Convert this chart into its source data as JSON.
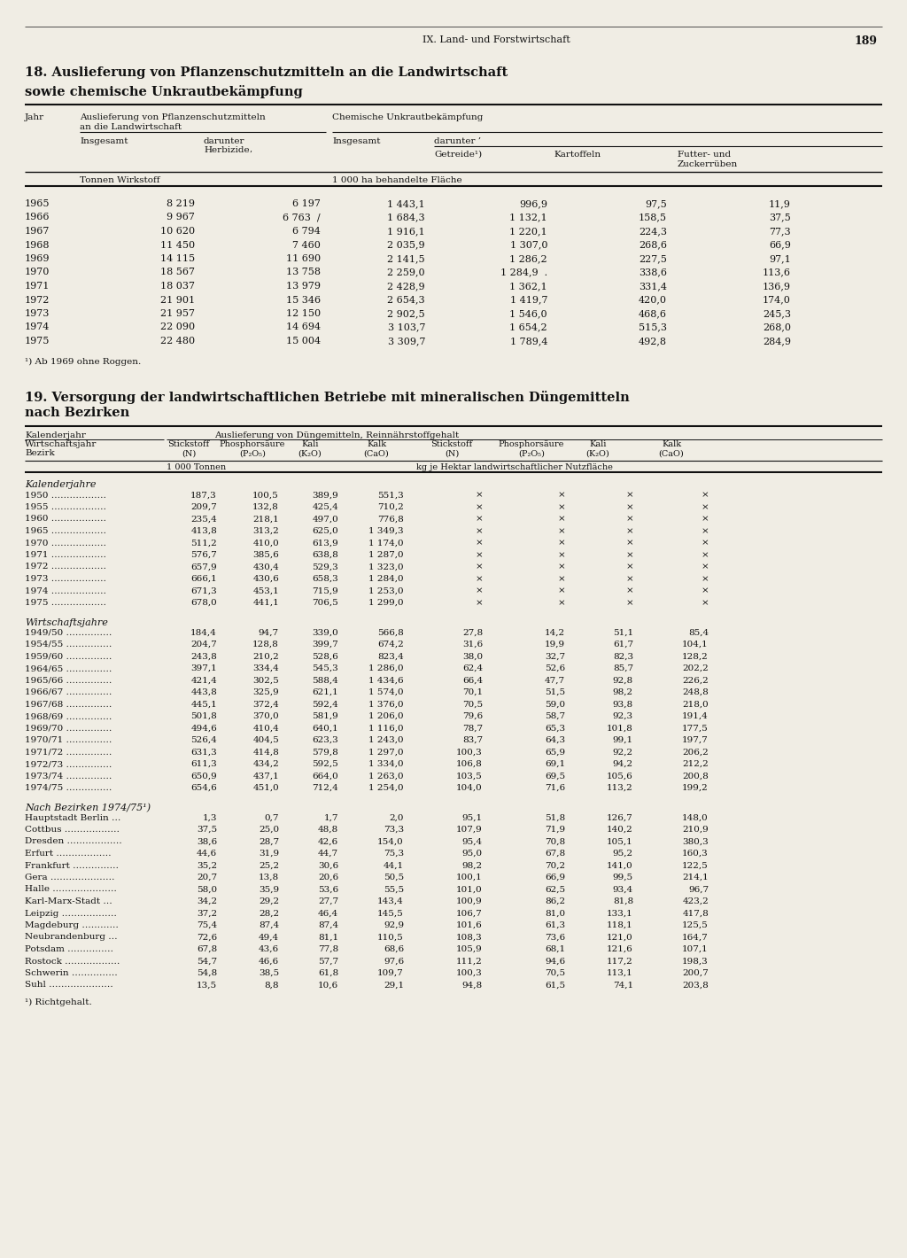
{
  "page_header": "IX. Land- und Forstwirtschaft",
  "page_number": "189",
  "bg_color": "#f0ede4",
  "t1_title1": "18. Auslieferung von Pflanzenschutzmitteln an die Landwirtschaft",
  "t1_title2": "sowie chemische Unkrautbekämpfung",
  "t1_data": [
    [
      "1965",
      "8 219",
      "6 197",
      "1 443,1",
      "996,9",
      "97,5",
      "11,9"
    ],
    [
      "1966",
      "9 967",
      "6 763  /",
      "1 684,3",
      "1 132,1",
      "158,5",
      "37,5"
    ],
    [
      "1967",
      "10 620",
      "6 794",
      "1 916,1",
      "1 220,1",
      "224,3",
      "77,3"
    ],
    [
      "1968",
      "11 450",
      "7 460",
      "2 035,9",
      "1 307,0",
      "268,6",
      "66,9"
    ],
    [
      "1969",
      "14 115",
      "11 690",
      "2 141,5",
      "1 286,2",
      "227,5",
      "97,1"
    ],
    [
      "1970",
      "18 567",
      "13 758",
      "2 259,0",
      "1 284,9  .",
      "338,6",
      "113,6"
    ],
    [
      "1971",
      "18 037",
      "13 979",
      "2 428,9",
      "1 362,1",
      "331,4",
      "136,9"
    ],
    [
      "1972",
      "21 901",
      "15 346",
      "2 654,3",
      "1 419,7",
      "420,0",
      "174,0"
    ],
    [
      "1973",
      "21 957",
      "12 150",
      "2 902,5",
      "1 546,0",
      "468,6",
      "245,3"
    ],
    [
      "1974",
      "22 090",
      "14 694",
      "3 103,7",
      "1 654,2",
      "515,3",
      "268,0"
    ],
    [
      "1975",
      "22 480",
      "15 004",
      "3 309,7",
      "1 789,4",
      "492,8",
      "284,9"
    ]
  ],
  "t1_footnote": "¹) Ab 1969 ohne Roggen.",
  "t2_title1": "19. Versorgung der landwirtschaftlichen Betriebe mit mineralischen Düngemitteln",
  "t2_title2": "nach Bezirken",
  "t2_s1_title": "Kalenderjahre",
  "t2_s1_data": [
    [
      "1950 ………………",
      "187,3",
      "100,5",
      "389,9",
      "551,3",
      "×",
      "×",
      "×",
      "×"
    ],
    [
      "1955 ………………",
      "209,7",
      "132,8",
      "425,4",
      "710,2",
      "×",
      "×",
      "×",
      "×"
    ],
    [
      "1960 ………………",
      "235,4",
      "218,1",
      "497,0",
      "776,8",
      "×",
      "×",
      "×",
      "×"
    ],
    [
      "1965 ………………",
      "413,8",
      "313,2",
      "625,0",
      "1 349,3",
      "×",
      "×",
      "×",
      "×"
    ],
    [
      "1970 ………………",
      "511,2",
      "410,0",
      "613,9",
      "1 174,0",
      "×",
      "×",
      "×",
      "×"
    ],
    [
      "1971 ………………",
      "576,7",
      "385,6",
      "638,8",
      "1 287,0",
      "×",
      "×",
      "×",
      "×"
    ],
    [
      "1972 ………………",
      "657,9",
      "430,4",
      "529,3",
      "1 323,0",
      "×",
      "×",
      "×",
      "×"
    ],
    [
      "1973 ………………",
      "666,1",
      "430,6",
      "658,3",
      "1 284,0",
      "×",
      "×",
      "×",
      "×"
    ],
    [
      "1974 ………………",
      "671,3",
      "453,1",
      "715,9",
      "1 253,0",
      "×",
      "×",
      "×",
      "×"
    ],
    [
      "1975 ………………",
      "678,0",
      "441,1",
      "706,5",
      "1 299,0",
      "×",
      "×",
      "×",
      "×"
    ]
  ],
  "t2_s2_title": "Wirtschaftsjahre",
  "t2_s2_data": [
    [
      "1949/50 ……………",
      "184,4",
      "94,7",
      "339,0",
      "566,8",
      "27,8",
      "14,2",
      "51,1",
      "85,4"
    ],
    [
      "1954/55 ……………",
      "204,7",
      "128,8",
      "399,7",
      "674,2",
      "31,6",
      "19,9",
      "61,7",
      "104,1"
    ],
    [
      "1959/60 ……………",
      "243,8",
      "210,2",
      "528,6",
      "823,4",
      "38,0",
      "32,7",
      "82,3",
      "128,2"
    ],
    [
      "1964/65 ……………",
      "397,1",
      "334,4",
      "545,3",
      "1 286,0",
      "62,4",
      "52,6",
      "85,7",
      "202,2"
    ],
    [
      "1965/66 ……………",
      "421,4",
      "302,5",
      "588,4",
      "1 434,6",
      "66,4",
      "47,7",
      "92,8",
      "226,2"
    ],
    [
      "1966/67 ……………",
      "443,8",
      "325,9",
      "621,1",
      "1 574,0",
      "70,1",
      "51,5",
      "98,2",
      "248,8"
    ],
    [
      "1967/68 ……………",
      "445,1",
      "372,4",
      "592,4",
      "1 376,0",
      "70,5",
      "59,0",
      "93,8",
      "218,0"
    ],
    [
      "1968/69 ……………",
      "501,8",
      "370,0",
      "581,9",
      "1 206,0",
      "79,6",
      "58,7",
      "92,3",
      "191,4"
    ],
    [
      "1969/70 ……………",
      "494,6",
      "410,4",
      "640,1",
      "1 116,0",
      "78,7",
      "65,3",
      "101,8",
      "177,5"
    ],
    [
      "1970/71 ……………",
      "526,4",
      "404,5",
      "623,3",
      "1 243,0",
      "83,7",
      "64,3",
      "99,1",
      "197,7"
    ],
    [
      "1971/72 ……………",
      "631,3",
      "414,8",
      "579,8",
      "1 297,0",
      "100,3",
      "65,9",
      "92,2",
      "206,2"
    ],
    [
      "1972/73 ……………",
      "611,3",
      "434,2",
      "592,5",
      "1 334,0",
      "106,8",
      "69,1",
      "94,2",
      "212,2"
    ],
    [
      "1973/74 ……………",
      "650,9",
      "437,1",
      "664,0",
      "1 263,0",
      "103,5",
      "69,5",
      "105,6",
      "200,8"
    ],
    [
      "1974/75 ……………",
      "654,6",
      "451,0",
      "712,4",
      "1 254,0",
      "104,0",
      "71,6",
      "113,2",
      "199,2"
    ]
  ],
  "t2_s3_title": "Nach Bezirken 1974/75¹)",
  "t2_s3_data": [
    [
      "Hauptstadt Berlin …",
      "1,3",
      "0,7",
      "1,7",
      "2,0",
      "95,1",
      "51,8",
      "126,7",
      "148,0"
    ],
    [
      "Cottbus ………………",
      "37,5",
      "25,0",
      "48,8",
      "73,3",
      "107,9",
      "71,9",
      "140,2",
      "210,9"
    ],
    [
      "Dresden ………………",
      "38,6",
      "28,7",
      "42,6",
      "154,0",
      "95,4",
      "70,8",
      "105,1",
      "380,3"
    ],
    [
      "Erfurt ………………",
      "44,6",
      "31,9",
      "44,7",
      "75,3",
      "95,0",
      "67,8",
      "95,2",
      "160,3"
    ],
    [
      "Frankfurt ……………",
      "35,2",
      "25,2",
      "30,6",
      "44,1",
      "98,2",
      "70,2",
      "141,0",
      "122,5"
    ],
    [
      "Gera …………………",
      "20,7",
      "13,8",
      "20,6",
      "50,5",
      "100,1",
      "66,9",
      "99,5",
      "214,1"
    ],
    [
      "Halle …………………",
      "58,0",
      "35,9",
      "53,6",
      "55,5",
      "101,0",
      "62,5",
      "93,4",
      "96,7"
    ],
    [
      "Karl-Marx-Stadt …",
      "34,2",
      "29,2",
      "27,7",
      "143,4",
      "100,9",
      "86,2",
      "81,8",
      "423,2"
    ],
    [
      "Leipzig ………………",
      "37,2",
      "28,2",
      "46,4",
      "145,5",
      "106,7",
      "81,0",
      "133,1",
      "417,8"
    ],
    [
      "Magdeburg …………",
      "75,4",
      "87,4",
      "87,4",
      "92,9",
      "101,6",
      "61,3",
      "118,1",
      "125,5"
    ],
    [
      "Neubrandenburg …",
      "72,6",
      "49,4",
      "81,1",
      "110,5",
      "108,3",
      "73,6",
      "121,0",
      "164,7"
    ],
    [
      "Potsdam ……………",
      "67,8",
      "43,6",
      "77,8",
      "68,6",
      "105,9",
      "68,1",
      "121,6",
      "107,1"
    ],
    [
      "Rostock ………………",
      "54,7",
      "46,6",
      "57,7",
      "97,6",
      "111,2",
      "94,6",
      "117,2",
      "198,3"
    ],
    [
      "Schwerin ……………",
      "54,8",
      "38,5",
      "61,8",
      "109,7",
      "100,3",
      "70,5",
      "113,1",
      "200,7"
    ],
    [
      "Suhl …………………",
      "13,5",
      "8,8",
      "10,6",
      "29,1",
      "94,8",
      "61,5",
      "74,1",
      "203,8"
    ]
  ],
  "t2_footnote": "¹) Richtgehalt."
}
